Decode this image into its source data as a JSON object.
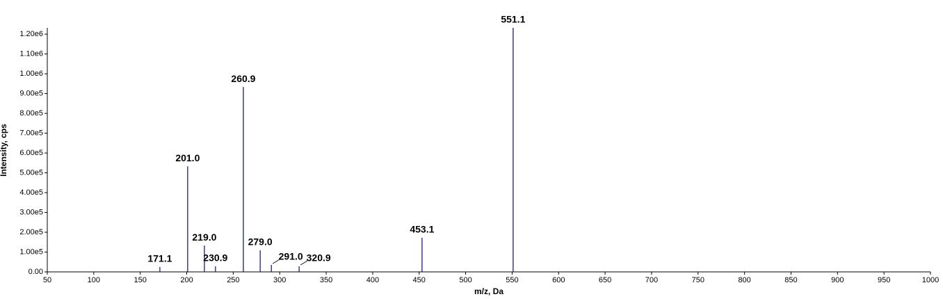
{
  "chart_data": {
    "type": "spectrum",
    "x_label": "m/z, Da",
    "y_label": "Intensity, cps",
    "x": [
      171.1,
      201.0,
      219.0,
      230.9,
      260.9,
      279.0,
      291.0,
      320.9,
      453.1,
      551.1
    ],
    "x_labels": [
      "171.1",
      "201.0",
      "219.0",
      "230.9",
      "260.9",
      "279.0",
      "291.0",
      "320.9",
      "453.1",
      "551.1"
    ],
    "values": [
      25000,
      533000,
      133000,
      28000,
      933000,
      109000,
      35000,
      28000,
      172000,
      1232000
    ],
    "color": "#1c1c7a",
    "xlim": [
      50,
      1000
    ],
    "ylim": [
      0,
      1232000
    ],
    "xticks": [
      50,
      100,
      150,
      200,
      250,
      300,
      350,
      400,
      450,
      500,
      550,
      600,
      650,
      700,
      750,
      800,
      850,
      900,
      950,
      1000
    ],
    "yticks": [
      {
        "value": 0,
        "label": "0.00"
      },
      {
        "value": 100000,
        "label": "1.00e5"
      },
      {
        "value": 200000,
        "label": "2.00e5"
      },
      {
        "value": 300000,
        "label": "3.00e5"
      },
      {
        "value": 400000,
        "label": "4.00e5"
      },
      {
        "value": 500000,
        "label": "5.00e5"
      },
      {
        "value": 600000,
        "label": "6.00e5"
      },
      {
        "value": 700000,
        "label": "7.00e5"
      },
      {
        "value": 800000,
        "label": "8.00e5"
      },
      {
        "value": 900000,
        "label": "9.00e5"
      },
      {
        "value": 1000000,
        "label": "1.00e6"
      },
      {
        "value": 1100000,
        "label": "1.10e6"
      },
      {
        "value": 1200000,
        "label": "1.20e6"
      }
    ]
  }
}
